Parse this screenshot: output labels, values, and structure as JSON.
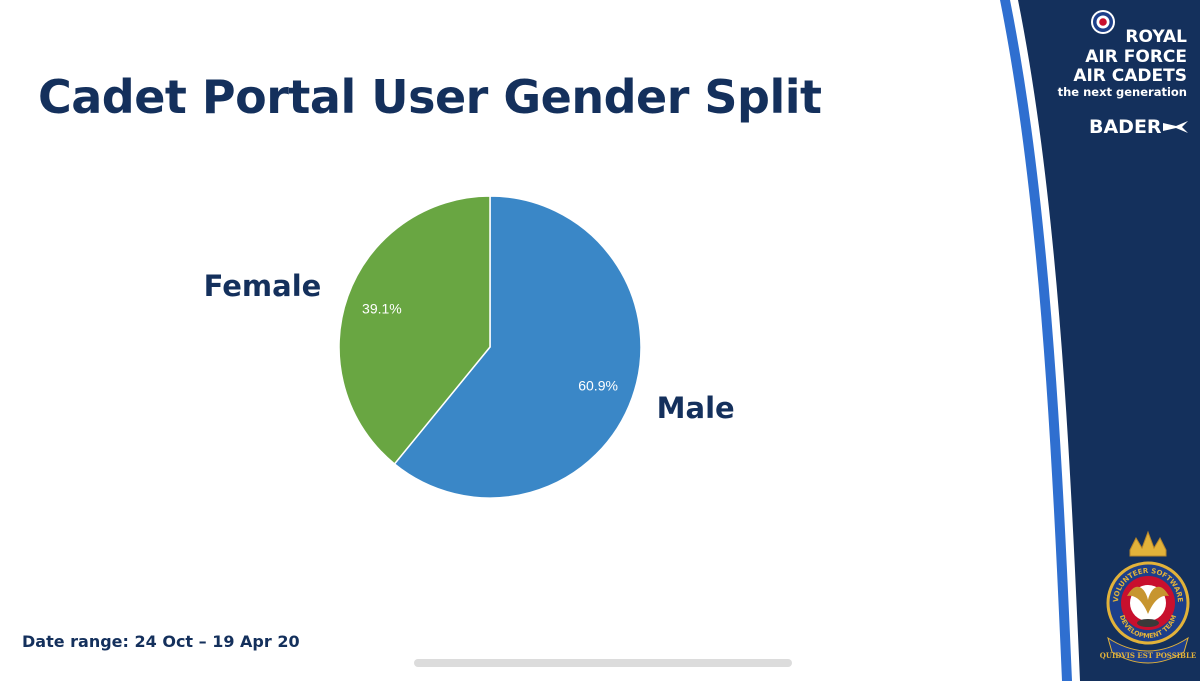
{
  "slide": {
    "title": "Cadet Portal User Gender Split",
    "date_range": "Date range: 24 Oct – 19 Apr 20"
  },
  "chart_data": {
    "type": "pie",
    "title": "Cadet Portal User Gender Split",
    "slices": [
      {
        "name": "Male",
        "value": 60.9,
        "pct_label": "60.9%",
        "color": "#3a87c7"
      },
      {
        "name": "Female",
        "value": 39.1,
        "pct_label": "39.1%",
        "color": "#69a642"
      }
    ]
  },
  "branding": {
    "line1": "ROYAL",
    "line2": "AIR FORCE",
    "line3": "AIR CADETS",
    "line4": "the next generation",
    "bader": "BADER",
    "crest_top": "VOLUNTEER SOFTWARE",
    "crest_mid": "DEVELOPMENT TEAM",
    "crest_motto": "QUIDVIS EST POSSIBLE",
    "navy": "#14305c",
    "blue": "#2f6fd0"
  }
}
